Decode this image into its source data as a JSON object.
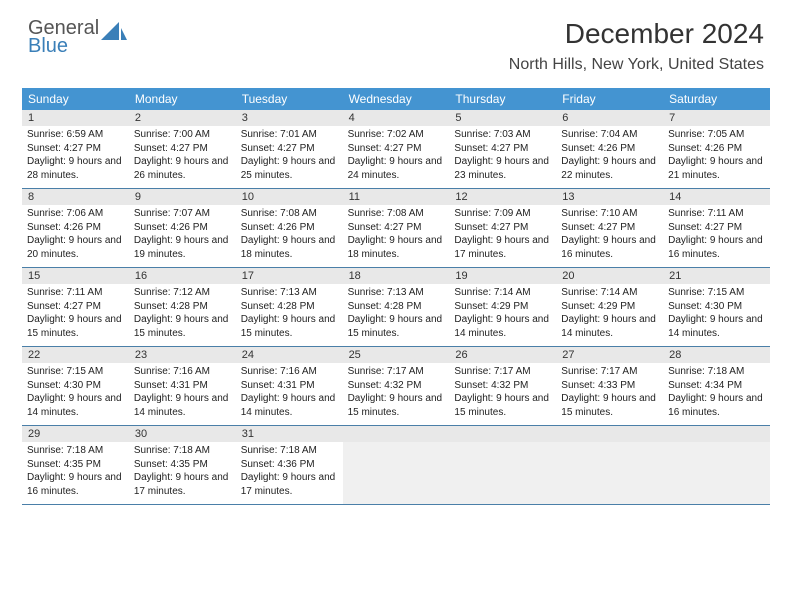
{
  "logo": {
    "top": "General",
    "bottom": "Blue"
  },
  "title": "December 2024",
  "subtitle": "North Hills, New York, United States",
  "colors": {
    "header_bg": "#4494d1",
    "header_fg": "#ffffff",
    "daynum_bg": "#e8e8e8",
    "rule": "#4a7fa8",
    "logo_blue": "#3a7fb8"
  },
  "day_headers": [
    "Sunday",
    "Monday",
    "Tuesday",
    "Wednesday",
    "Thursday",
    "Friday",
    "Saturday"
  ],
  "days": [
    {
      "n": "1",
      "sr": "6:59 AM",
      "ss": "4:27 PM",
      "dl": "9 hours and 28 minutes."
    },
    {
      "n": "2",
      "sr": "7:00 AM",
      "ss": "4:27 PM",
      "dl": "9 hours and 26 minutes."
    },
    {
      "n": "3",
      "sr": "7:01 AM",
      "ss": "4:27 PM",
      "dl": "9 hours and 25 minutes."
    },
    {
      "n": "4",
      "sr": "7:02 AM",
      "ss": "4:27 PM",
      "dl": "9 hours and 24 minutes."
    },
    {
      "n": "5",
      "sr": "7:03 AM",
      "ss": "4:27 PM",
      "dl": "9 hours and 23 minutes."
    },
    {
      "n": "6",
      "sr": "7:04 AM",
      "ss": "4:26 PM",
      "dl": "9 hours and 22 minutes."
    },
    {
      "n": "7",
      "sr": "7:05 AM",
      "ss": "4:26 PM",
      "dl": "9 hours and 21 minutes."
    },
    {
      "n": "8",
      "sr": "7:06 AM",
      "ss": "4:26 PM",
      "dl": "9 hours and 20 minutes."
    },
    {
      "n": "9",
      "sr": "7:07 AM",
      "ss": "4:26 PM",
      "dl": "9 hours and 19 minutes."
    },
    {
      "n": "10",
      "sr": "7:08 AM",
      "ss": "4:26 PM",
      "dl": "9 hours and 18 minutes."
    },
    {
      "n": "11",
      "sr": "7:08 AM",
      "ss": "4:27 PM",
      "dl": "9 hours and 18 minutes."
    },
    {
      "n": "12",
      "sr": "7:09 AM",
      "ss": "4:27 PM",
      "dl": "9 hours and 17 minutes."
    },
    {
      "n": "13",
      "sr": "7:10 AM",
      "ss": "4:27 PM",
      "dl": "9 hours and 16 minutes."
    },
    {
      "n": "14",
      "sr": "7:11 AM",
      "ss": "4:27 PM",
      "dl": "9 hours and 16 minutes."
    },
    {
      "n": "15",
      "sr": "7:11 AM",
      "ss": "4:27 PM",
      "dl": "9 hours and 15 minutes."
    },
    {
      "n": "16",
      "sr": "7:12 AM",
      "ss": "4:28 PM",
      "dl": "9 hours and 15 minutes."
    },
    {
      "n": "17",
      "sr": "7:13 AM",
      "ss": "4:28 PM",
      "dl": "9 hours and 15 minutes."
    },
    {
      "n": "18",
      "sr": "7:13 AM",
      "ss": "4:28 PM",
      "dl": "9 hours and 15 minutes."
    },
    {
      "n": "19",
      "sr": "7:14 AM",
      "ss": "4:29 PM",
      "dl": "9 hours and 14 minutes."
    },
    {
      "n": "20",
      "sr": "7:14 AM",
      "ss": "4:29 PM",
      "dl": "9 hours and 14 minutes."
    },
    {
      "n": "21",
      "sr": "7:15 AM",
      "ss": "4:30 PM",
      "dl": "9 hours and 14 minutes."
    },
    {
      "n": "22",
      "sr": "7:15 AM",
      "ss": "4:30 PM",
      "dl": "9 hours and 14 minutes."
    },
    {
      "n": "23",
      "sr": "7:16 AM",
      "ss": "4:31 PM",
      "dl": "9 hours and 14 minutes."
    },
    {
      "n": "24",
      "sr": "7:16 AM",
      "ss": "4:31 PM",
      "dl": "9 hours and 14 minutes."
    },
    {
      "n": "25",
      "sr": "7:17 AM",
      "ss": "4:32 PM",
      "dl": "9 hours and 15 minutes."
    },
    {
      "n": "26",
      "sr": "7:17 AM",
      "ss": "4:32 PM",
      "dl": "9 hours and 15 minutes."
    },
    {
      "n": "27",
      "sr": "7:17 AM",
      "ss": "4:33 PM",
      "dl": "9 hours and 15 minutes."
    },
    {
      "n": "28",
      "sr": "7:18 AM",
      "ss": "4:34 PM",
      "dl": "9 hours and 16 minutes."
    },
    {
      "n": "29",
      "sr": "7:18 AM",
      "ss": "4:35 PM",
      "dl": "9 hours and 16 minutes."
    },
    {
      "n": "30",
      "sr": "7:18 AM",
      "ss": "4:35 PM",
      "dl": "9 hours and 17 minutes."
    },
    {
      "n": "31",
      "sr": "7:18 AM",
      "ss": "4:36 PM",
      "dl": "9 hours and 17 minutes."
    }
  ],
  "labels": {
    "sunrise": "Sunrise:",
    "sunset": "Sunset:",
    "daylight": "Daylight:"
  }
}
